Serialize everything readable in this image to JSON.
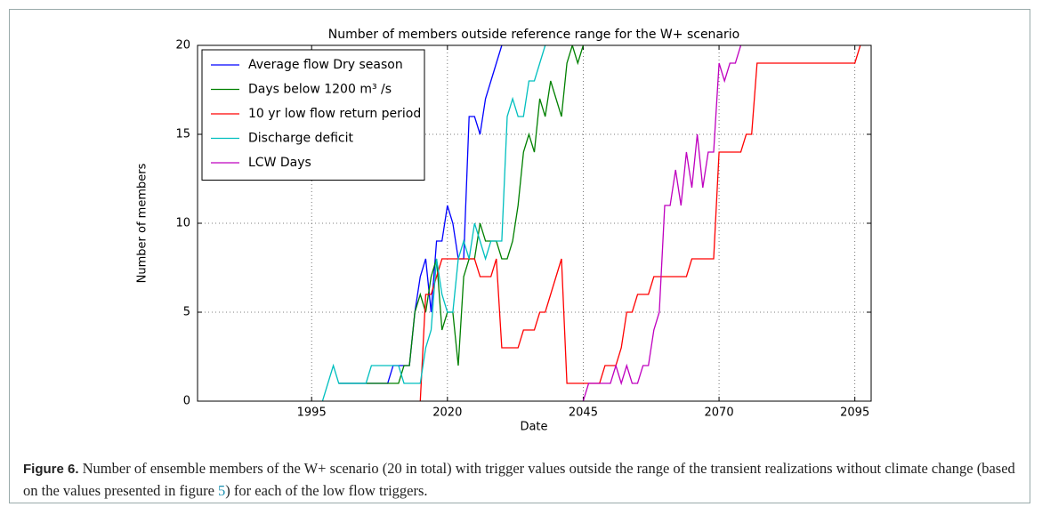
{
  "chart_data": {
    "type": "line",
    "title": "Number of members outside reference range for the W+ scenario",
    "x_label": "Date",
    "y_label": "Number of members",
    "xlim": [
      1974,
      2098
    ],
    "xticks": [
      1995,
      2020,
      2045,
      2070,
      2095
    ],
    "ylim": [
      0,
      20
    ],
    "yticks": [
      0,
      5,
      10,
      15,
      20
    ],
    "grid": true,
    "legend": "upper left",
    "series": [
      {
        "name": "Average flow Dry season",
        "color": "#0000ff",
        "x": [
          2000,
          2009,
          2010,
          2013,
          2014,
          2015,
          2016,
          2017,
          2018,
          2019,
          2020,
          2021,
          2022,
          2023,
          2024,
          2025,
          2026,
          2027,
          2028,
          2029,
          2030
        ],
        "values": [
          1,
          1,
          2,
          2,
          5,
          7,
          8,
          5,
          9,
          9,
          11,
          10,
          8,
          8,
          16,
          16,
          15,
          17,
          18,
          19,
          20
        ]
      },
      {
        "name": "Days below 1200 m³ /s",
        "color": "#008000",
        "x": [
          2000,
          2011,
          2012,
          2013,
          2014,
          2015,
          2016,
          2017,
          2018,
          2019,
          2020,
          2021,
          2022,
          2023,
          2024,
          2025,
          2026,
          2027,
          2028,
          2029,
          2030,
          2031,
          2032,
          2033,
          2034,
          2035,
          2036,
          2037,
          2038,
          2039,
          2040,
          2041,
          2042,
          2043,
          2044,
          2045
        ],
        "values": [
          1,
          1,
          2,
          2,
          5,
          6,
          5,
          7,
          8,
          4,
          5,
          5,
          2,
          7,
          8,
          8,
          10,
          9,
          9,
          9,
          8,
          8,
          9,
          11,
          14,
          15,
          14,
          17,
          16,
          18,
          17,
          16,
          19,
          20,
          19,
          20
        ]
      },
      {
        "name": "10 yr low flow return period",
        "color": "#ff0000",
        "x": [
          2015,
          2016,
          2017,
          2018,
          2019,
          2025,
          2026,
          2028,
          2029,
          2030,
          2033,
          2034,
          2036,
          2037,
          2038,
          2039,
          2040,
          2041,
          2042,
          2048,
          2049,
          2051,
          2052,
          2053,
          2054,
          2055,
          2057,
          2058,
          2064,
          2065,
          2069,
          2070,
          2074,
          2075,
          2076,
          2077,
          2095,
          2096
        ],
        "values": [
          0,
          6,
          6,
          7,
          8,
          8,
          7,
          7,
          8,
          3,
          3,
          4,
          4,
          5,
          5,
          6,
          7,
          8,
          1,
          1,
          2,
          2,
          3,
          5,
          5,
          6,
          6,
          7,
          7,
          8,
          8,
          14,
          14,
          15,
          15,
          19,
          19,
          20
        ]
      },
      {
        "name": "Discharge deficit",
        "color": "#00bfbf",
        "x": [
          1997,
          1999,
          2000,
          2005,
          2006,
          2011,
          2012,
          2015,
          2016,
          2017,
          2018,
          2019,
          2020,
          2021,
          2022,
          2023,
          2024,
          2025,
          2026,
          2027,
          2028,
          2029,
          2030,
          2031,
          2032,
          2033,
          2034,
          2035,
          2036,
          2037,
          2038
        ],
        "values": [
          0,
          2,
          1,
          1,
          2,
          2,
          1,
          1,
          3,
          4,
          8,
          6,
          5,
          5,
          8,
          9,
          8,
          10,
          9,
          8,
          9,
          9,
          9,
          16,
          17,
          16,
          16,
          18,
          18,
          19,
          20
        ]
      },
      {
        "name": "LCW Days",
        "color": "#bf00bf",
        "x": [
          2045,
          2046,
          2050,
          2051,
          2052,
          2053,
          2054,
          2055,
          2056,
          2057,
          2058,
          2059,
          2060,
          2061,
          2062,
          2063,
          2064,
          2065,
          2066,
          2067,
          2068,
          2069,
          2070,
          2071,
          2072,
          2073,
          2074
        ],
        "values": [
          0,
          1,
          1,
          2,
          1,
          2,
          1,
          1,
          2,
          2,
          4,
          5,
          11,
          11,
          13,
          11,
          14,
          12,
          15,
          12,
          14,
          14,
          19,
          18,
          19,
          19,
          20
        ]
      }
    ]
  },
  "caption": {
    "label": "Figure 6.",
    "text_1": "Number of ensemble members of the W+ scenario (20 in total) with trigger values outside the range of the transient realizations without climate change (based on the values presented in figure ",
    "ref": "5",
    "text_2": ") for each of the low flow triggers."
  }
}
